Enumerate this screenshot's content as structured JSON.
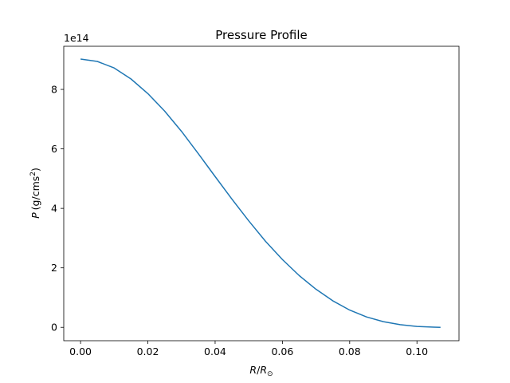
{
  "chart_data": {
    "type": "line",
    "title": "Pressure Profile",
    "xlabel": {
      "var": "R",
      "slash": "/",
      "sub_base": "R",
      "sub": "⊙"
    },
    "ylabel": {
      "var": "P",
      "unit_prefix": "(g/cms",
      "unit_exp": "2",
      "unit_suffix": ")"
    },
    "y_offset_label": "1e14",
    "xlim": [
      -0.005,
      0.1125
    ],
    "ylim": [
      -0.45,
      9.45
    ],
    "x_ticks": [
      0.0,
      0.02,
      0.04,
      0.06,
      0.08,
      0.1
    ],
    "x_tick_labels": [
      "0.00",
      "0.02",
      "0.04",
      "0.06",
      "0.08",
      "0.10"
    ],
    "y_ticks": [
      0,
      2,
      4,
      6,
      8
    ],
    "y_tick_labels": [
      "0",
      "2",
      "4",
      "6",
      "8"
    ],
    "line_color": "#1f77b4",
    "series": [
      {
        "x": [
          0.0,
          0.005,
          0.01,
          0.015,
          0.02,
          0.025,
          0.03,
          0.035,
          0.04,
          0.045,
          0.05,
          0.055,
          0.06,
          0.065,
          0.07,
          0.075,
          0.08,
          0.085,
          0.09,
          0.095,
          0.1,
          0.105,
          0.107
        ],
        "y": [
          9.02,
          8.94,
          8.72,
          8.35,
          7.86,
          7.27,
          6.59,
          5.84,
          5.07,
          4.31,
          3.58,
          2.89,
          2.28,
          1.74,
          1.28,
          0.89,
          0.58,
          0.35,
          0.19,
          0.09,
          0.03,
          0.005,
          0.0
        ]
      }
    ]
  }
}
